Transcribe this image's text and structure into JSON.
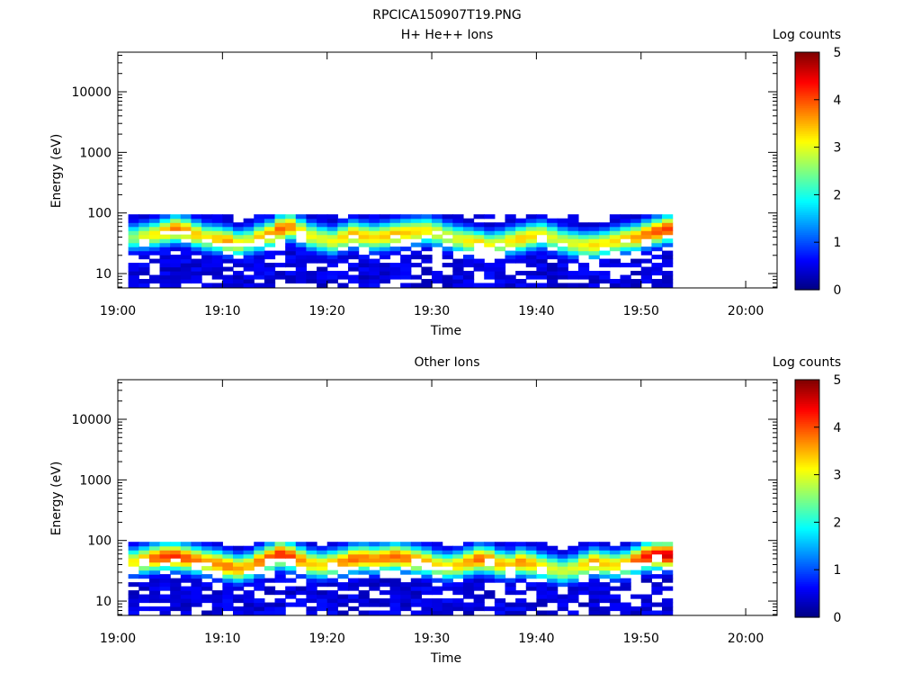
{
  "figure": {
    "title": "RPCICA150907T19.PNG"
  },
  "chart_data": [
    {
      "type": "heatmap",
      "title": "H+ He++ Ions",
      "xlabel": "Time",
      "ylabel": "Energy (eV)",
      "x_ticks": [
        "19:00",
        "19:10",
        "19:20",
        "19:30",
        "19:40",
        "19:50",
        "20:00"
      ],
      "x_range": [
        "19:00",
        "20:03"
      ],
      "y_scale": "log",
      "y_ticks": [
        10,
        100,
        1000,
        10000
      ],
      "ylim": [
        5.8,
        45000
      ],
      "colorbar": {
        "label": "Log counts",
        "range": [
          0,
          5
        ],
        "ticks": [
          "0",
          "1",
          "2",
          "3",
          "4",
          "5"
        ]
      },
      "data_time_range": [
        "19:01",
        "19:53"
      ],
      "data_energy_range": [
        6,
        95
      ],
      "peak_energy_eV": [
        40,
        42,
        45,
        50,
        55,
        52,
        45,
        40,
        38,
        35,
        32,
        35,
        40,
        45,
        55,
        60,
        50,
        42,
        38,
        35,
        40,
        45,
        42,
        40,
        42,
        45,
        48,
        50,
        52,
        48,
        42,
        38,
        35,
        32,
        30,
        32,
        35,
        38,
        42,
        45,
        40,
        35,
        32,
        30,
        30,
        32,
        35,
        38,
        40,
        45,
        50,
        55
      ],
      "peak_log_counts": [
        2.6,
        3.0,
        3.2,
        3.5,
        3.8,
        3.6,
        3.4,
        3.2,
        3.4,
        3.6,
        3.2,
        3.0,
        3.4,
        3.6,
        3.9,
        3.7,
        3.3,
        3.1,
        3.0,
        3.1,
        3.3,
        3.5,
        3.4,
        3.3,
        3.4,
        3.5,
        3.4,
        3.3,
        3.2,
        3.1,
        3.0,
        3.0,
        3.2,
        3.4,
        3.1,
        3.0,
        3.2,
        3.4,
        3.3,
        3.1,
        3.0,
        2.9,
        3.0,
        3.1,
        3.3,
        3.2,
        3.3,
        3.4,
        3.6,
        3.8,
        4.0,
        4.1
      ]
    },
    {
      "type": "heatmap",
      "title": "Other Ions",
      "xlabel": "Time",
      "ylabel": "Energy (eV)",
      "x_ticks": [
        "19:00",
        "19:10",
        "19:20",
        "19:30",
        "19:40",
        "19:50",
        "20:00"
      ],
      "x_range": [
        "19:00",
        "20:03"
      ],
      "y_scale": "log",
      "y_ticks": [
        10,
        100,
        1000,
        10000
      ],
      "ylim": [
        5.8,
        45000
      ],
      "colorbar": {
        "label": "Log counts",
        "range": [
          0,
          5
        ],
        "ticks": [
          "0",
          "1",
          "2",
          "3",
          "4",
          "5"
        ]
      },
      "data_time_range": [
        "19:01",
        "19:53"
      ],
      "data_energy_range": [
        6,
        95
      ],
      "peak_energy_eV": [
        45,
        48,
        52,
        55,
        55,
        52,
        48,
        45,
        42,
        38,
        35,
        38,
        45,
        52,
        60,
        55,
        48,
        42,
        40,
        42,
        45,
        50,
        52,
        50,
        52,
        55,
        52,
        48,
        45,
        40,
        38,
        40,
        45,
        50,
        48,
        42,
        40,
        45,
        42,
        38,
        35,
        32,
        35,
        40,
        45,
        42,
        40,
        42,
        48,
        55,
        58,
        58
      ],
      "peak_log_counts": [
        3.2,
        3.6,
        3.9,
        4.1,
        4.2,
        4.0,
        3.8,
        3.6,
        3.7,
        3.8,
        3.6,
        3.5,
        3.8,
        4.0,
        4.2,
        4.1,
        3.7,
        3.4,
        3.3,
        3.5,
        3.7,
        3.9,
        3.8,
        3.7,
        3.8,
        3.9,
        3.8,
        3.7,
        3.5,
        3.3,
        3.2,
        3.4,
        3.6,
        3.9,
        3.8,
        3.5,
        3.4,
        3.7,
        3.5,
        3.2,
        3.0,
        2.9,
        3.0,
        3.3,
        3.6,
        3.4,
        3.3,
        3.5,
        3.9,
        4.3,
        4.5,
        4.6
      ]
    }
  ]
}
